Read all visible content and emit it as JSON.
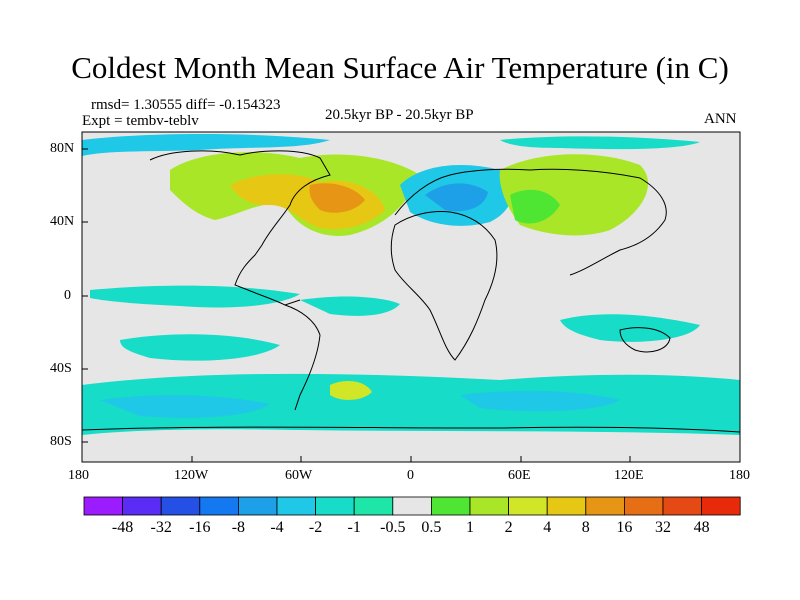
{
  "title": "Coldest Month Mean Surface Air Temperature (in C)",
  "stats": {
    "rmsd_line": "rmsd= 1.30555 diff= -0.154323",
    "expt_line": "Expt = tembv-teblv",
    "center_line": "20.5kyr BP - 20.5kyr BP",
    "right_line": "ANN"
  },
  "axes": {
    "y_ticks": [
      "80N",
      "40N",
      "0",
      "40S",
      "80S"
    ],
    "x_ticks": [
      "180",
      "120W",
      "60W",
      "0",
      "60E",
      "120E",
      "180"
    ]
  },
  "colorbar": {
    "labels": [
      "-48",
      "-32",
      "-16",
      "-8",
      "-4",
      "-2",
      "-1",
      "-0.5",
      "0.5",
      "1",
      "2",
      "4",
      "8",
      "16",
      "32",
      "48"
    ],
    "colors": [
      "#9b1dff",
      "#5a2cf5",
      "#2450e6",
      "#1478f0",
      "#1ea0e8",
      "#1ec8e6",
      "#16dcc8",
      "#1ee6a8",
      "#e6e6e6",
      "#4ee632",
      "#aae628",
      "#d2e628",
      "#e6c814",
      "#e69614",
      "#e66e14",
      "#e64a14",
      "#e62a0a"
    ]
  },
  "colors": {
    "neutral": "#e6e6e6",
    "cyan": "#1ec8e6",
    "teal": "#16dcc8",
    "blue": "#1ea0e8",
    "green": "#4ee632",
    "lime": "#aae628",
    "yellow": "#d2e628",
    "orange": "#e6c814"
  }
}
